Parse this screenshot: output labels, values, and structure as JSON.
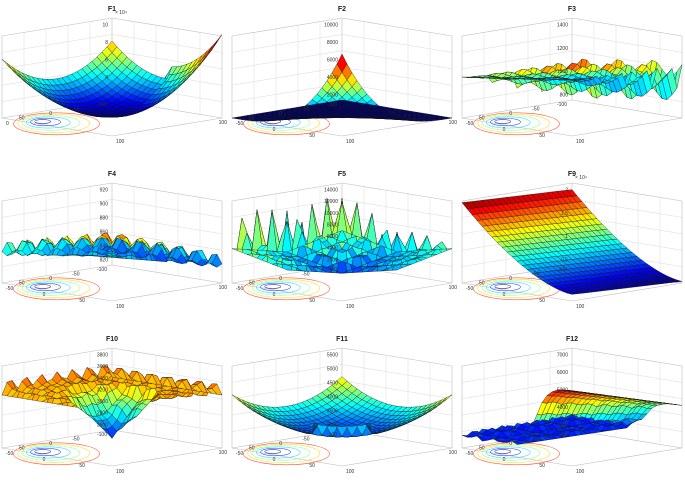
{
  "chart_data": [
    {
      "type": "surface",
      "title": "F1",
      "function": "bowl",
      "zticks": [
        "10",
        "8",
        "6",
        "4",
        "2"
      ],
      "zexp": "× 10⁴",
      "xyticks": [
        "100",
        "50",
        "0",
        "-50",
        "-100",
        "0",
        "100"
      ],
      "zrange": [
        0,
        100000
      ]
    },
    {
      "type": "surface",
      "title": "F2",
      "function": "peak",
      "zticks": [
        "10000",
        "8000",
        "6000",
        "4000",
        "2000"
      ],
      "zexp": "",
      "xyticks": [
        "100",
        "50",
        "0",
        "-50",
        "-100",
        "-50",
        "0",
        "50",
        "100"
      ],
      "zrange": [
        0,
        10000
      ]
    },
    {
      "type": "surface",
      "title": "F3",
      "function": "ridge",
      "zticks": [
        "1400",
        "1200",
        "1000",
        "800"
      ],
      "zexp": "",
      "xyticks": [
        "100",
        "50",
        "0",
        "-50",
        "-100",
        "-50",
        "0",
        "50",
        "100"
      ],
      "zrange": [
        700,
        1400
      ]
    },
    {
      "type": "surface",
      "title": "F4",
      "function": "rastrigin",
      "zticks": [
        "920",
        "900",
        "880",
        "860",
        "840",
        "820"
      ],
      "zexp": "",
      "xyticks": [
        "100",
        "50",
        "0",
        "-50",
        "-100",
        "-50",
        "0",
        "50",
        "100"
      ],
      "zrange": [
        810,
        930
      ]
    },
    {
      "type": "surface",
      "title": "F5",
      "function": "spiky",
      "zticks": [
        "14000",
        "12000",
        "10000",
        "8000",
        "6000",
        "4000",
        "2000"
      ],
      "zexp": "",
      "xyticks": [
        "100",
        "50",
        "0",
        "-50",
        "-100",
        "-50",
        "0",
        "50",
        "100"
      ],
      "zrange": [
        0,
        14000
      ]
    },
    {
      "type": "surface",
      "title": "F9",
      "function": "slope",
      "zticks": [
        "2",
        "1.5",
        "1",
        "0.5"
      ],
      "zexp": "× 10⁴",
      "xyticks": [
        "100",
        "50",
        "0",
        "-50",
        "-100",
        "-50",
        "0",
        "50",
        "100"
      ],
      "zrange": [
        0,
        25000
      ]
    },
    {
      "type": "surface",
      "title": "F10",
      "function": "well",
      "zticks": [
        "3800",
        "3600",
        "3400",
        "3200",
        "3000",
        "2800",
        "2600"
      ],
      "zexp": "",
      "xyticks": [
        "100",
        "50",
        "0",
        "-50",
        "-100",
        "-50",
        "0",
        "50",
        "100"
      ],
      "zrange": [
        2500,
        3900
      ]
    },
    {
      "type": "surface",
      "title": "F11",
      "function": "pyramid",
      "zticks": [
        "5500",
        "5000",
        "4500",
        "4000",
        "3500",
        "3000"
      ],
      "zexp": "",
      "xyticks": [
        "100",
        "50",
        "0",
        "-50",
        "-100",
        "-50",
        "0",
        "50",
        "100"
      ],
      "zrange": [
        2800,
        5600
      ]
    },
    {
      "type": "surface",
      "title": "F12",
      "function": "cliff",
      "zticks": [
        "7000",
        "6000",
        "5000",
        "4000",
        "3000"
      ],
      "zexp": "",
      "xyticks": [
        "100",
        "50",
        "0",
        "-50",
        "-100",
        "-50",
        "0",
        "50",
        "100"
      ],
      "zrange": [
        2800,
        7200
      ]
    }
  ]
}
